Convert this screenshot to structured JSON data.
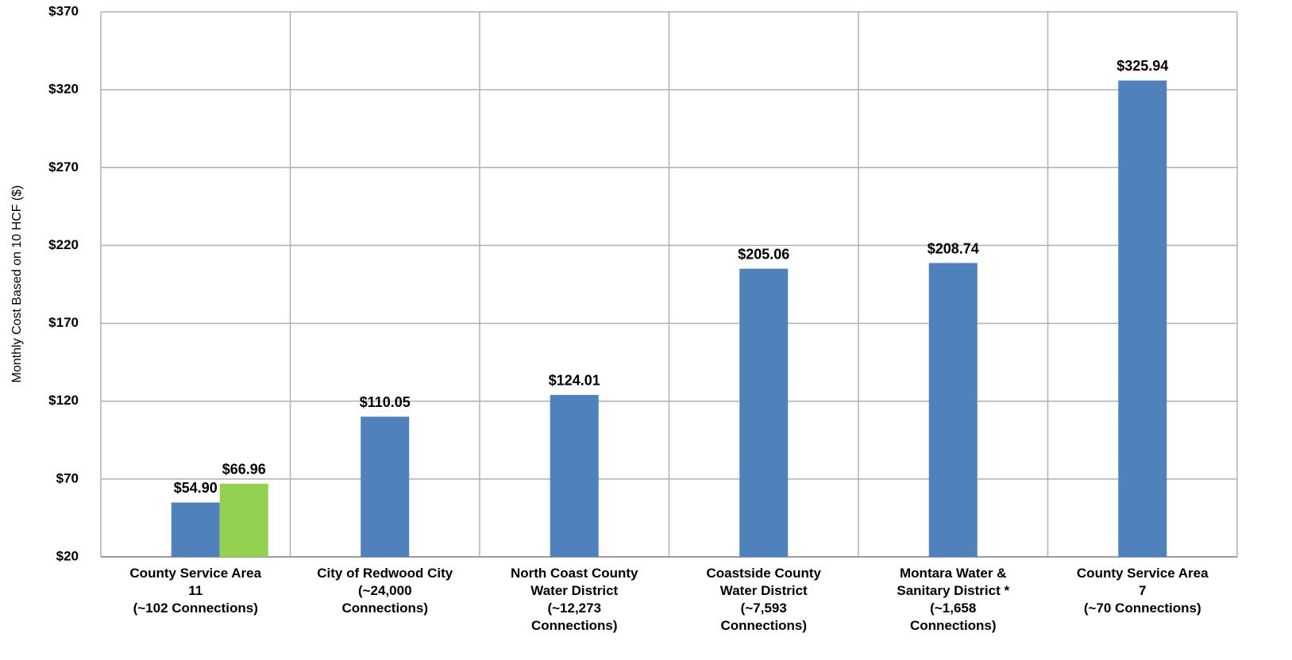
{
  "chart_data": {
    "type": "bar",
    "y_label": "Monthly Cost Based on 10 HCF ($)",
    "categories": [
      "County Service Area\n11\n(~102 Connections)",
      "City of Redwood City\n(~24,000\nConnections)",
      "North Coast County\nWater District\n(~12,273\nConnections)",
      "Coastside County\nWater District\n(~7,593\nConnections)",
      "Montara Water &\nSanitary District *\n(~1,658\nConnections)",
      "County Service Area\n7\n(~70 Connections)"
    ],
    "series": [
      {
        "color": "#4f81bd",
        "values": [
          54.9,
          110.05,
          124.01,
          205.06,
          208.74,
          325.94
        ],
        "value_labels": [
          "$54.90",
          "$110.05",
          "$124.01",
          "$205.06",
          "$208.74",
          "$325.94"
        ]
      },
      {
        "color": "#92d050",
        "values": [
          66.96,
          null,
          null,
          null,
          null,
          null
        ],
        "value_labels": [
          "$66.96",
          null,
          null,
          null,
          null,
          null
        ]
      }
    ],
    "ylim": [
      20,
      370
    ],
    "yticks": [
      {
        "value": 20,
        "label": "$20"
      },
      {
        "value": 70,
        "label": "$70"
      },
      {
        "value": 120,
        "label": "$120"
      },
      {
        "value": 170,
        "label": "$170"
      },
      {
        "value": 220,
        "label": "$220"
      },
      {
        "value": 270,
        "label": "$270"
      },
      {
        "value": 320,
        "label": "$320"
      },
      {
        "value": 370,
        "label": "$370"
      }
    ],
    "grid": true
  }
}
